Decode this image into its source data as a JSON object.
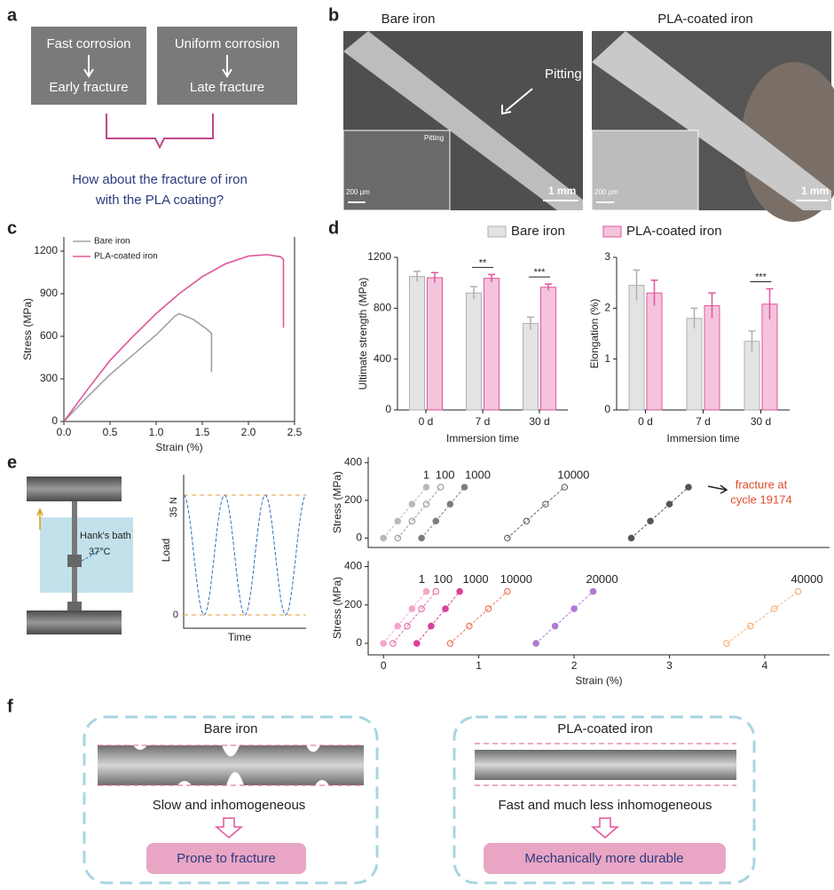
{
  "panel_labels": [
    "a",
    "b",
    "c",
    "d",
    "e",
    "f"
  ],
  "panel_a": {
    "left_top": "Fast corrosion",
    "left_bottom": "Early fracture",
    "right_top": "Uniform corrosion",
    "right_bottom": "Late fracture",
    "question": [
      "How about the fracture of iron",
      "with the PLA coating?"
    ]
  },
  "panel_b": {
    "left_title": "Bare iron",
    "right_title": "PLA-coated iron",
    "pitting": "Pitting",
    "inset_pitting": "Pitting",
    "scale_main": "1 mm",
    "scale_inset": "200 μm"
  },
  "panel_e_schematic": {
    "bath": "Hank's bath",
    "temperature": "37°C",
    "load_max": "35 N",
    "load_zero": "0",
    "y_label": "Load",
    "x_label": "Time"
  },
  "panel_f": {
    "left_title": "Bare iron",
    "left_text": "Slow and inhomogeneous",
    "left_result": "Prone to fracture",
    "right_title": "PLA-coated iron",
    "right_text": "Fast and much less inhomogeneous",
    "right_result": "Mechanically more durable"
  },
  "chart_data": [
    {
      "type": "line",
      "x_label": "Strain (%)",
      "y_label": "Stress (MPa)",
      "xlim": [
        0,
        2.5
      ],
      "xticks": [
        {
          "value": 0,
          "label": "0.0"
        },
        0.5,
        {
          "value": 1,
          "label": "1.0"
        },
        1.5,
        {
          "value": 2,
          "label": "2.0"
        },
        2.5
      ],
      "ylim": [
        0,
        1300
      ],
      "yticks": [
        0,
        300,
        600,
        900,
        1200
      ],
      "series": [
        {
          "name": "Bare iron",
          "color": "#a0a0a0",
          "x": [
            0,
            0.25,
            0.5,
            0.75,
            1.0,
            1.2,
            1.25,
            1.4,
            1.55,
            1.6,
            1.6
          ],
          "values": [
            0,
            170,
            330,
            470,
            610,
            740,
            760,
            720,
            650,
            620,
            350
          ]
        },
        {
          "name": "PLA-coated iron",
          "color": "#e0559a",
          "x": [
            0,
            0.25,
            0.5,
            0.75,
            1.0,
            1.25,
            1.5,
            1.75,
            2.0,
            2.2,
            2.35,
            2.38,
            2.38
          ],
          "values": [
            0,
            220,
            430,
            600,
            760,
            900,
            1020,
            1110,
            1165,
            1175,
            1160,
            1140,
            660
          ]
        }
      ]
    },
    {
      "type": "bar",
      "x_label": "Immersion time",
      "y_label": "Ultimate strength (MPa)",
      "categories": [
        "0 d",
        "7 d",
        "30 d"
      ],
      "ylim": [
        0,
        1200
      ],
      "yticks": [
        0,
        400,
        800,
        1200
      ],
      "series": [
        {
          "name": "Bare iron",
          "color": "#b0b0b0",
          "values": [
            1050,
            920,
            680
          ],
          "errors": [
            40,
            50,
            50
          ]
        },
        {
          "name": "PLA-coated iron",
          "color": "#e0559a",
          "values": [
            1040,
            1035,
            965
          ],
          "errors": [
            40,
            30,
            25
          ]
        }
      ],
      "significance": [
        null,
        "**",
        "***"
      ]
    },
    {
      "type": "bar",
      "x_label": "Immersion time",
      "y_label": "Elongation (%)",
      "categories": [
        "0 d",
        "7 d",
        "30 d"
      ],
      "ylim": [
        0,
        3
      ],
      "yticks": [
        0,
        1,
        2,
        3
      ],
      "series": [
        {
          "color": "#b0b0b0",
          "values": [
            2.45,
            1.8,
            1.35
          ],
          "errors": [
            0.3,
            0.2,
            0.2
          ]
        },
        {
          "color": "#e0559a",
          "values": [
            2.3,
            2.05,
            2.08
          ],
          "errors": [
            0.25,
            0.25,
            0.3
          ]
        }
      ],
      "significance": [
        null,
        null,
        "***"
      ]
    },
    {
      "type": "line",
      "y_label": "Stress (MPa)",
      "xlim": [
        -0.16,
        4.68
      ],
      "ylim": [
        -50,
        430
      ],
      "yticks": [
        0,
        200,
        400
      ],
      "annotation": [
        "fracture at",
        "cycle 19174"
      ],
      "series": [
        {
          "name": "1",
          "color": "#b8b8b8",
          "x": [
            0,
            0.15,
            0.3,
            0.45
          ],
          "values": [
            0,
            90,
            180,
            270
          ]
        },
        {
          "name": "100",
          "color": "#9a9a9a",
          "x": [
            0.15,
            0.3,
            0.45,
            0.6
          ],
          "values": [
            0,
            90,
            180,
            270
          ]
        },
        {
          "name": "1000",
          "color": "#7d7d7d",
          "x": [
            0.4,
            0.55,
            0.7,
            0.85
          ],
          "values": [
            0,
            90,
            180,
            270
          ]
        },
        {
          "name": "10000",
          "color": "#666666",
          "x": [
            1.3,
            1.5,
            1.7,
            1.9
          ],
          "values": [
            0,
            90,
            180,
            270
          ]
        },
        {
          "color": "#555555",
          "x": [
            2.6,
            2.8,
            3.0,
            3.2
          ],
          "values": [
            0,
            90,
            180,
            270
          ]
        }
      ]
    },
    {
      "type": "line",
      "x_label": "Strain (%)",
      "y_label": "Stress (MPa)",
      "xlim": [
        -0.16,
        4.68
      ],
      "xticks": [
        0,
        1,
        2,
        3,
        4
      ],
      "ylim": [
        -60,
        430
      ],
      "yticks": [
        0,
        200,
        400
      ],
      "series": [
        {
          "name": "1",
          "color": "#f3a6cc",
          "x": [
            0,
            0.15,
            0.3,
            0.45
          ],
          "values": [
            0,
            90,
            180,
            270
          ]
        },
        {
          "name": "100",
          "color": "#e96fae",
          "x": [
            0.1,
            0.25,
            0.4,
            0.55
          ],
          "values": [
            0,
            90,
            180,
            270
          ]
        },
        {
          "name": "1000",
          "color": "#d9409a",
          "x": [
            0.35,
            0.5,
            0.65,
            0.8
          ],
          "values": [
            0,
            90,
            180,
            270
          ]
        },
        {
          "name": "10000",
          "color": "#ee7a5a",
          "x": [
            0.7,
            0.9,
            1.1,
            1.3
          ],
          "values": [
            0,
            90,
            180,
            270
          ]
        },
        {
          "name": "20000",
          "color": "#b07ad0",
          "x": [
            1.6,
            1.8,
            2.0,
            2.2
          ],
          "values": [
            0,
            90,
            180,
            270
          ]
        },
        {
          "name": "40000",
          "color": "#f5b27a",
          "x": [
            3.6,
            3.85,
            4.1,
            4.35
          ],
          "values": [
            0,
            90,
            180,
            270
          ]
        }
      ]
    }
  ]
}
